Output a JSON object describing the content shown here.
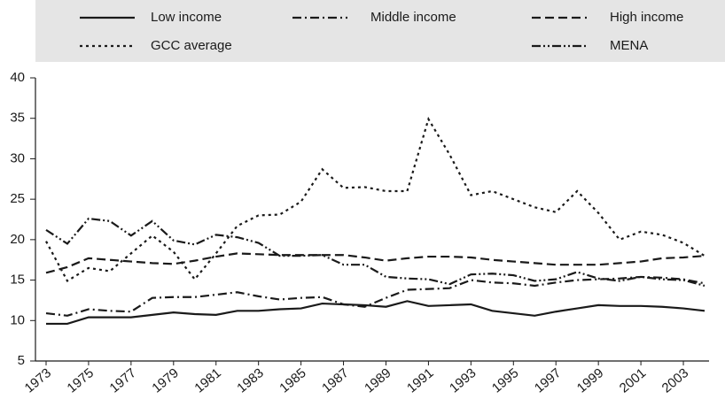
{
  "chart_data": {
    "type": "line",
    "x": [
      1973,
      1974,
      1975,
      1976,
      1977,
      1978,
      1979,
      1980,
      1981,
      1982,
      1983,
      1984,
      1985,
      1986,
      1987,
      1988,
      1989,
      1990,
      1991,
      1992,
      1993,
      1994,
      1995,
      1996,
      1997,
      1998,
      1999,
      2000,
      2001,
      2002,
      2003,
      2004
    ],
    "series": [
      {
        "name": "Low income",
        "color": "#1a1a1a",
        "dash": "solid",
        "legend_row": 0,
        "legend_col": 0,
        "values": [
          9.6,
          9.6,
          10.4,
          10.4,
          10.4,
          10.7,
          11.0,
          10.8,
          10.7,
          11.2,
          11.2,
          11.4,
          11.5,
          12.1,
          12.0,
          11.9,
          11.7,
          12.4,
          11.8,
          11.9,
          12.0,
          11.2,
          10.9,
          10.6,
          11.1,
          11.5,
          11.9,
          11.8,
          11.8,
          11.7,
          11.5,
          11.2
        ]
      },
      {
        "name": "Middle income",
        "color": "#1a1a1a",
        "dash": "dashdot",
        "legend_row": 0,
        "legend_col": 1,
        "values": [
          10.9,
          10.6,
          11.4,
          11.2,
          11.1,
          12.8,
          12.9,
          12.9,
          13.2,
          13.5,
          13.0,
          12.6,
          12.8,
          12.9,
          12.0,
          11.7,
          12.8,
          13.8,
          13.9,
          14.0,
          15.0,
          14.7,
          14.6,
          14.3,
          14.7,
          15.0,
          15.1,
          15.2,
          15.4,
          15.3,
          15.1,
          14.6
        ]
      },
      {
        "name": "High income",
        "color": "#1a1a1a",
        "dash": "dashed",
        "legend_row": 0,
        "legend_col": 2,
        "values": [
          15.9,
          16.6,
          17.7,
          17.5,
          17.3,
          17.1,
          17.0,
          17.4,
          17.9,
          18.3,
          18.2,
          18.1,
          18.1,
          18.1,
          18.1,
          17.8,
          17.4,
          17.7,
          17.9,
          17.9,
          17.8,
          17.5,
          17.3,
          17.1,
          16.9,
          16.9,
          16.9,
          17.1,
          17.3,
          17.7,
          17.8,
          18.0
        ]
      },
      {
        "name": "GCC average",
        "color": "#1a1a1a",
        "dash": "dotted",
        "legend_row": 1,
        "legend_col": 0,
        "values": [
          19.8,
          14.9,
          16.5,
          16.1,
          18.3,
          20.5,
          18.5,
          15.1,
          18.3,
          21.7,
          23.0,
          23.1,
          24.7,
          28.7,
          26.4,
          26.5,
          26.0,
          26.0,
          34.9,
          30.5,
          25.5,
          26.0,
          25.0,
          24.0,
          23.4,
          26.0,
          23.3,
          20.0,
          21.0,
          20.6,
          19.6,
          18.0
        ]
      },
      {
        "name": "MENA",
        "color": "#1a1a1a",
        "dash": "dashdotdot",
        "legend_row": 1,
        "legend_col": 2,
        "values": [
          21.2,
          19.5,
          22.6,
          22.3,
          20.5,
          22.3,
          19.9,
          19.4,
          20.6,
          20.3,
          19.6,
          18.0,
          18.0,
          18.1,
          16.9,
          16.9,
          15.4,
          15.2,
          15.1,
          14.5,
          15.7,
          15.8,
          15.6,
          14.9,
          15.1,
          16.0,
          15.2,
          14.9,
          15.4,
          15.1,
          15.0,
          14.3
        ]
      }
    ],
    "xlim": [
      1973,
      2004
    ],
    "xticks": [
      1973,
      1975,
      1977,
      1979,
      1981,
      1983,
      1985,
      1987,
      1989,
      1991,
      1993,
      1995,
      1997,
      1999,
      2001,
      2003
    ],
    "ylim": [
      5,
      40
    ],
    "yticks": [
      5,
      10,
      15,
      20,
      25,
      30,
      35,
      40
    ],
    "grid": false
  }
}
